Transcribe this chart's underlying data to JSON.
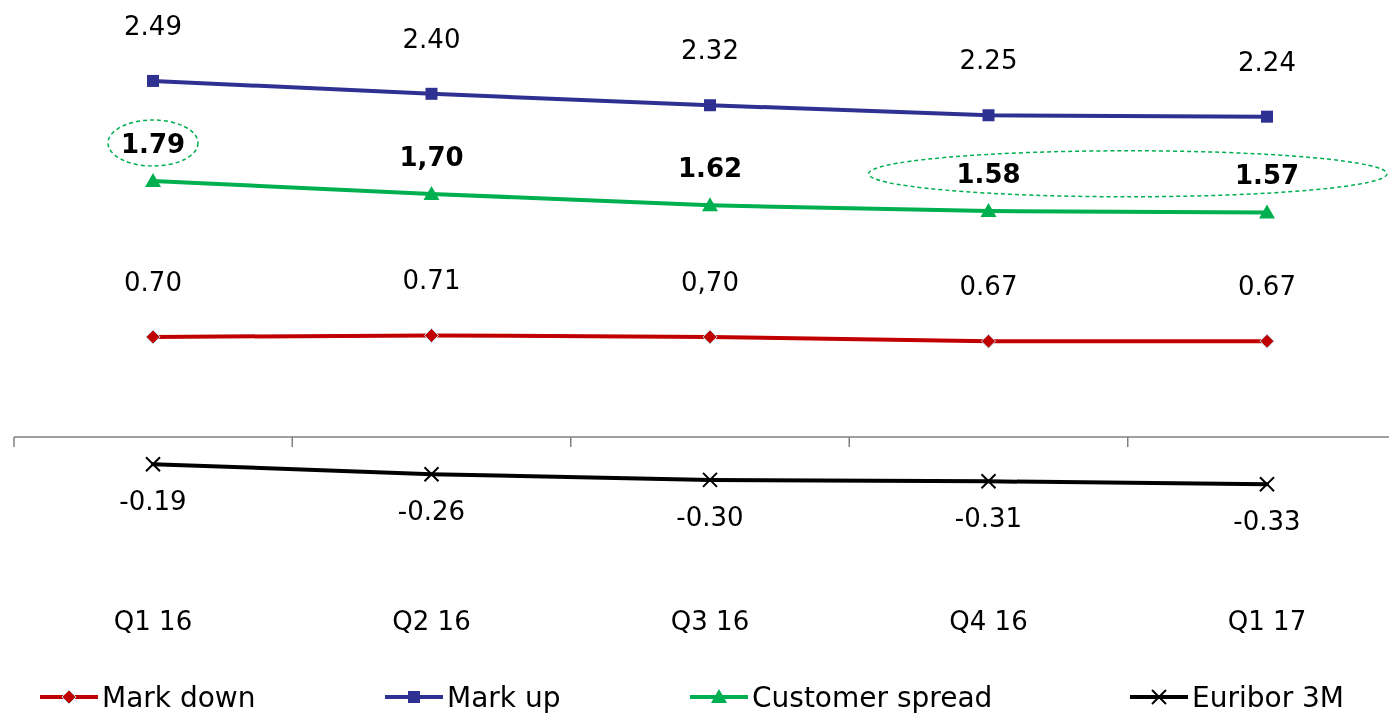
{
  "chart_data": {
    "type": "line",
    "categories": [
      "Q1 16",
      "Q2 16",
      "Q3 16",
      "Q4 16",
      "Q1 17"
    ],
    "tick_labels": "x",
    "legend": "bottom",
    "series": [
      {
        "name": "Mark down",
        "color": "#c00000",
        "marker": "diamond",
        "values": [
          0.7,
          0.71,
          0.7,
          0.67,
          0.67
        ],
        "value_labels": [
          "0.70",
          "0.71",
          "0,70",
          "0.67",
          "0.67"
        ]
      },
      {
        "name": "Mark up",
        "color": "#2e3192",
        "marker": "square",
        "values": [
          2.49,
          2.4,
          2.32,
          2.25,
          2.24
        ],
        "value_labels": [
          "2.49",
          "2.40",
          "2.32",
          "2.25",
          "2.24"
        ]
      },
      {
        "name": "Customer spread",
        "color": "#00b050",
        "marker": "triangle",
        "values": [
          1.79,
          1.7,
          1.62,
          1.58,
          1.57
        ],
        "value_labels": [
          "1.79",
          "1,70",
          "1.62",
          "1.58",
          "1.57"
        ]
      },
      {
        "name": "Euribor 3M",
        "color": "#000000",
        "marker": "cross",
        "values": [
          -0.19,
          -0.26,
          -0.3,
          -0.31,
          -0.33
        ],
        "value_labels": [
          "-0.19",
          "-0.26",
          "-0.30",
          "-0.31",
          "-0.33"
        ]
      }
    ]
  }
}
